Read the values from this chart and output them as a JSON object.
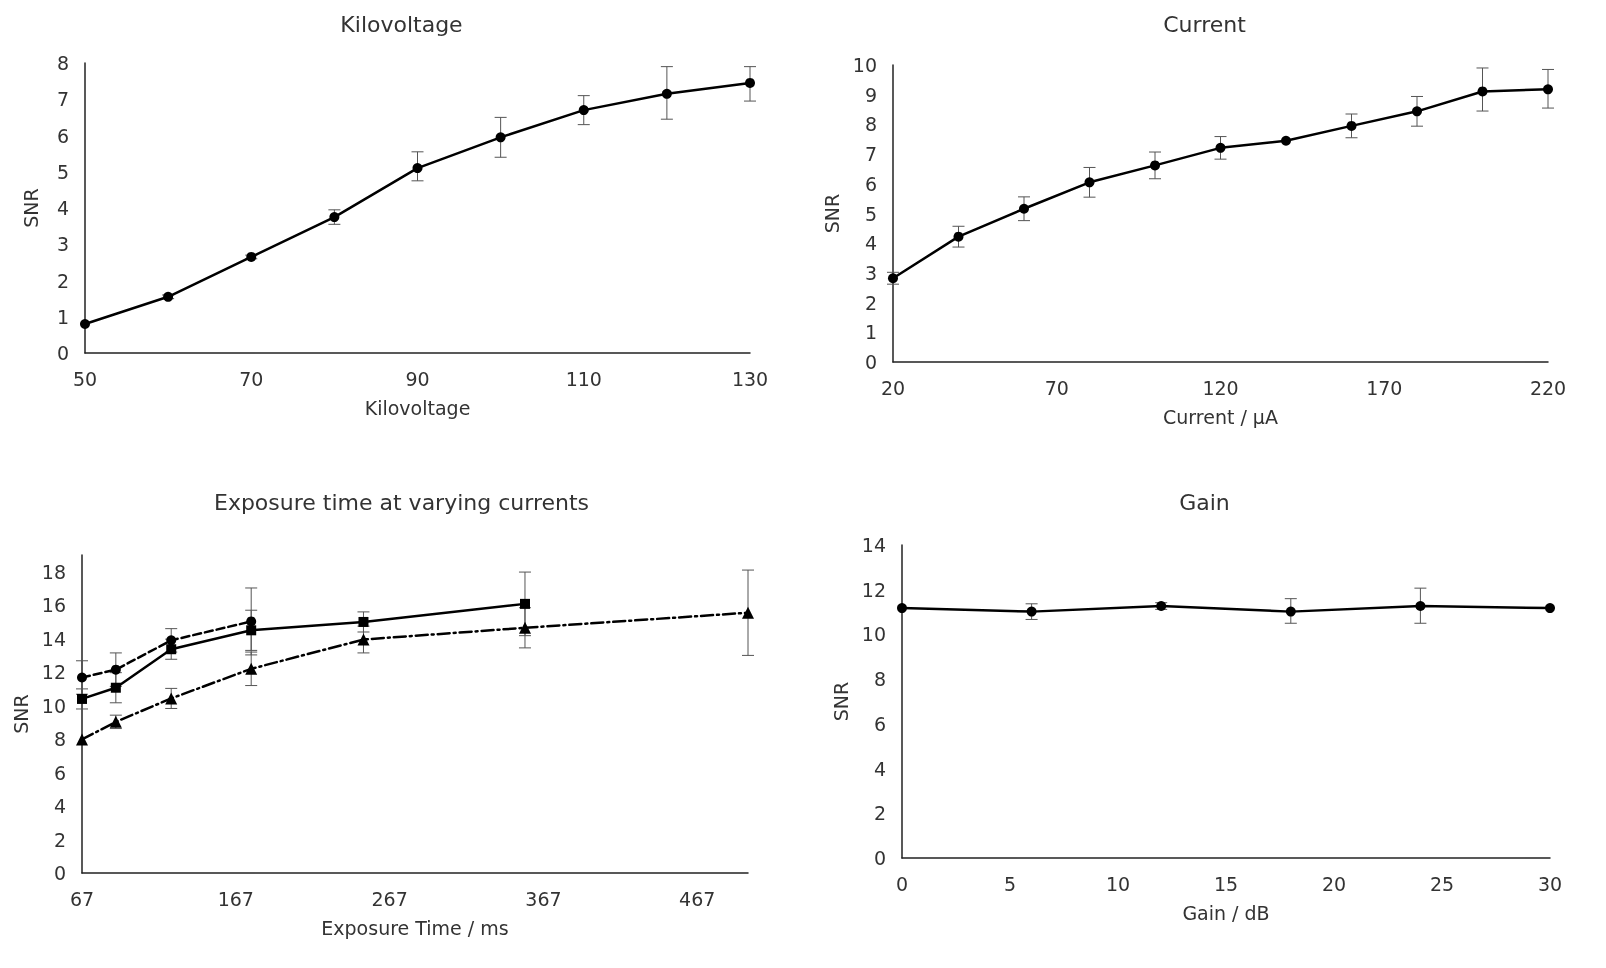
{
  "chart_data": [
    {
      "type": "line",
      "title": "Kilovoltage",
      "xlabel": "Kilovoltage",
      "ylabel": "SNR",
      "x": [
        50,
        60,
        70,
        80,
        90,
        100,
        110,
        120,
        130
      ],
      "xlim": [
        50,
        130
      ],
      "xticks": [
        50,
        70,
        90,
        110,
        130
      ],
      "ylim": [
        0,
        8
      ],
      "yticks": [
        0,
        1,
        2,
        3,
        4,
        5,
        6,
        7,
        8
      ],
      "marker": "circle",
      "line_style": "solid",
      "series": [
        {
          "color": "#000000",
          "values": [
            0.8,
            1.55,
            2.65,
            3.75,
            5.1,
            5.95,
            6.7,
            7.15,
            7.45
          ],
          "errors": [
            null,
            0.05,
            0.05,
            0.2,
            [
              4.75,
              5.55
            ],
            0.55,
            0.4,
            [
              6.45,
              7.9
            ],
            [
              6.95,
              7.9
            ]
          ]
        }
      ]
    },
    {
      "type": "line",
      "title": "Current",
      "xlabel": "Current / µA",
      "ylabel": "SNR",
      "x": [
        20,
        40,
        60,
        80,
        100,
        120,
        140,
        160,
        180,
        200,
        220
      ],
      "xlim": [
        20,
        220
      ],
      "xticks": [
        20,
        70,
        120,
        170,
        220
      ],
      "ylim": [
        0,
        10
      ],
      "yticks": [
        0,
        1,
        2,
        3,
        4,
        5,
        6,
        7,
        8,
        9,
        10
      ],
      "marker": "circle",
      "line_style": "solid",
      "series": [
        {
          "color": "#000000",
          "values": [
            2.82,
            4.22,
            5.16,
            6.05,
            6.62,
            7.21,
            7.45,
            7.95,
            8.44,
            9.11,
            9.18
          ],
          "errors": [
            0.2,
            0.35,
            0.4,
            0.5,
            0.45,
            0.38,
            null,
            0.4,
            0.5,
            [
              8.45,
              9.9
            ],
            [
              8.55,
              9.85
            ]
          ]
        }
      ]
    },
    {
      "type": "line",
      "title": "Exposure time at varying currents",
      "xlabel": "Exposure Time / ms",
      "ylabel": "SNR",
      "x": [
        67,
        89,
        125,
        177,
        250,
        355,
        500
      ],
      "xlim": [
        67,
        500
      ],
      "xticks": [
        67,
        167,
        267,
        367,
        467
      ],
      "ylim": [
        0,
        19
      ],
      "yticks": [
        0,
        2,
        4,
        6,
        8,
        10,
        12,
        14,
        16,
        18
      ],
      "series": [
        {
          "color": "#000000",
          "marker": "circle",
          "line_style": "dashed",
          "values": [
            11.68,
            12.15,
            13.9,
            15.03,
            null,
            null,
            null
          ],
          "errors": [
            1.0,
            1.0,
            0.7,
            2.0,
            null,
            null,
            null
          ]
        },
        {
          "color": "#000000",
          "marker": "square",
          "line_style": "solid",
          "values": [
            10.4,
            11.07,
            13.37,
            14.5,
            15.0,
            16.08,
            null
          ],
          "errors": [
            0.6,
            0.9,
            0.6,
            1.2,
            0.6,
            1.9,
            null
          ]
        },
        {
          "color": "#000000",
          "marker": "triangle",
          "line_style": "dashdot",
          "values": [
            7.98,
            9.03,
            10.43,
            12.2,
            13.95,
            14.65,
            15.55
          ],
          "errors": [
            null,
            0.4,
            0.6,
            1.0,
            0.8,
            1.2,
            2.55
          ]
        }
      ]
    },
    {
      "type": "line",
      "title": "Gain",
      "xlabel": "Gain / dB",
      "ylabel": "SNR",
      "x": [
        0,
        6,
        12,
        18,
        24,
        30
      ],
      "xlim": [
        0,
        30
      ],
      "xticks": [
        0,
        5,
        10,
        15,
        20,
        25,
        30
      ],
      "ylim": [
        0,
        14
      ],
      "yticks": [
        0,
        2,
        4,
        6,
        8,
        10,
        12,
        14
      ],
      "marker": "circle",
      "line_style": "solid",
      "series": [
        {
          "color": "#000000",
          "values": [
            11.18,
            11.02,
            11.27,
            11.02,
            11.27,
            11.18
          ],
          "errors": [
            null,
            0.35,
            0.15,
            [
              10.5,
              11.6
            ],
            [
              10.5,
              12.07
            ],
            null
          ]
        }
      ]
    }
  ]
}
